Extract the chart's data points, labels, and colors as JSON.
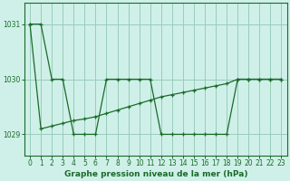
{
  "title": "Graphe pression niveau de la mer (hPa)",
  "bg_color": "#cff0e8",
  "grid_color": "#99ccbb",
  "line_color": "#1a6b2a",
  "x_hours": [
    0,
    1,
    2,
    3,
    4,
    5,
    6,
    7,
    8,
    9,
    10,
    11,
    12,
    13,
    14,
    15,
    16,
    17,
    18,
    19,
    20,
    21,
    22,
    23
  ],
  "series1": [
    1031.0,
    1031.0,
    1030.0,
    1030.0,
    1029.0,
    1029.0,
    1029.0,
    1030.0,
    1030.0,
    1030.0,
    1030.0,
    1030.0,
    1029.0,
    1029.0,
    1029.0,
    1029.0,
    1029.0,
    1029.0,
    1029.0,
    1030.0,
    1030.0,
    1030.0,
    1030.0,
    1030.0
  ],
  "series2": [
    1031.0,
    1029.1,
    1029.15,
    1029.2,
    1029.25,
    1029.28,
    1029.32,
    1029.38,
    1029.44,
    1029.5,
    1029.56,
    1029.62,
    1029.68,
    1029.72,
    1029.76,
    1029.8,
    1029.84,
    1029.88,
    1029.92,
    1030.0,
    1030.0,
    1030.0,
    1030.0,
    1030.0
  ],
  "ylim": [
    1028.62,
    1031.38
  ],
  "yticks": [
    1029,
    1030,
    1031
  ],
  "xlim": [
    -0.5,
    23.5
  ],
  "xticks": [
    0,
    1,
    2,
    3,
    4,
    5,
    6,
    7,
    8,
    9,
    10,
    11,
    12,
    13,
    14,
    15,
    16,
    17,
    18,
    19,
    20,
    21,
    22,
    23
  ],
  "tick_fontsize": 5.5,
  "label_fontsize": 6.5
}
